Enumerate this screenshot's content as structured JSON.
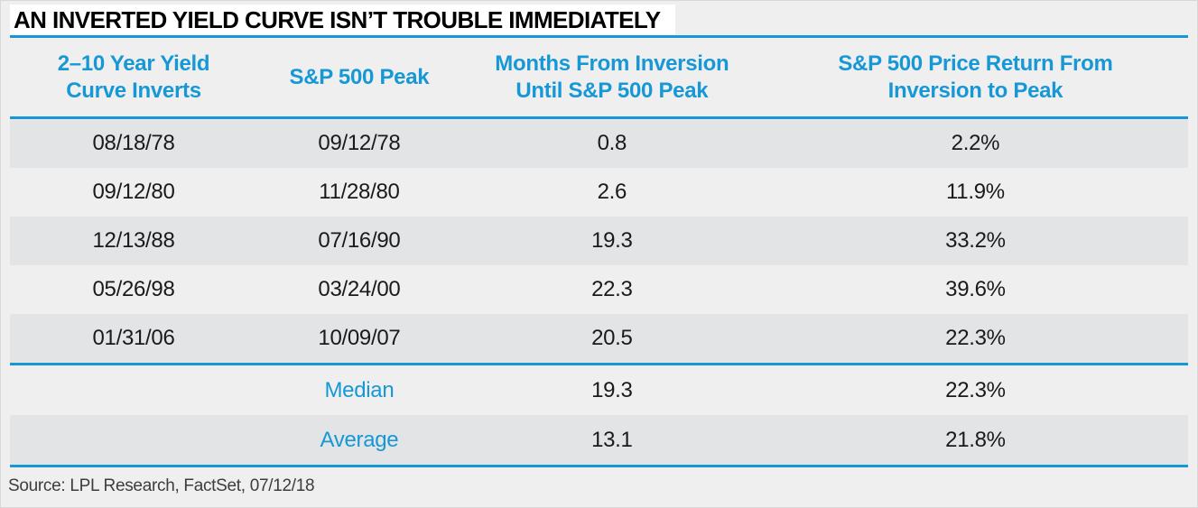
{
  "title": "AN INVERTED YIELD CURVE ISN’T TROUBLE IMMEDIATELY",
  "source": "Source: LPL Research, FactSet, 07/12/18",
  "colors": {
    "accent_blue": "#1798D6",
    "page_background": "#EFEFEF",
    "row_stripe_dark": "#E3E4E6",
    "title_text": "#000000",
    "cell_text": "#1A1A1A",
    "source_text": "#3D3D3D",
    "title_highlight": "#FFFFFF"
  },
  "chart_data": {
    "type": "table",
    "title": "AN INVERTED YIELD CURVE ISN’T TROUBLE IMMEDIATELY",
    "columns": [
      {
        "line1": "2–10 Year Yield",
        "line2": "Curve Inverts"
      },
      {
        "line1": "S&P 500 Peak",
        "line2": ""
      },
      {
        "line1": "Months From Inversion",
        "line2": "Until S&P 500 Peak"
      },
      {
        "line1": "S&P 500 Price Return From",
        "line2": "Inversion to Peak"
      }
    ],
    "rows": [
      {
        "cells": [
          "08/18/78",
          "09/12/78",
          "0.8",
          "2.2%"
        ]
      },
      {
        "cells": [
          "09/12/80",
          "11/28/80",
          "2.6",
          "11.9%"
        ]
      },
      {
        "cells": [
          "12/13/88",
          "07/16/90",
          "19.3",
          "33.2%"
        ]
      },
      {
        "cells": [
          "05/26/98",
          "03/24/00",
          "22.3",
          "39.6%"
        ]
      },
      {
        "cells": [
          "01/31/06",
          "10/09/07",
          "20.5",
          "22.3%"
        ]
      }
    ],
    "summary_rows": [
      {
        "cells": [
          "",
          "Median",
          "19.3",
          "22.3%"
        ]
      },
      {
        "cells": [
          "",
          "Average",
          "13.1",
          "21.8%"
        ]
      }
    ],
    "source_note": "Source: LPL Research, FactSet, 07/12/18",
    "layout": {
      "stripes": "rows 1,3,5 and Average shaded",
      "grid": "off",
      "rules": "blue horizontal dividers"
    }
  }
}
